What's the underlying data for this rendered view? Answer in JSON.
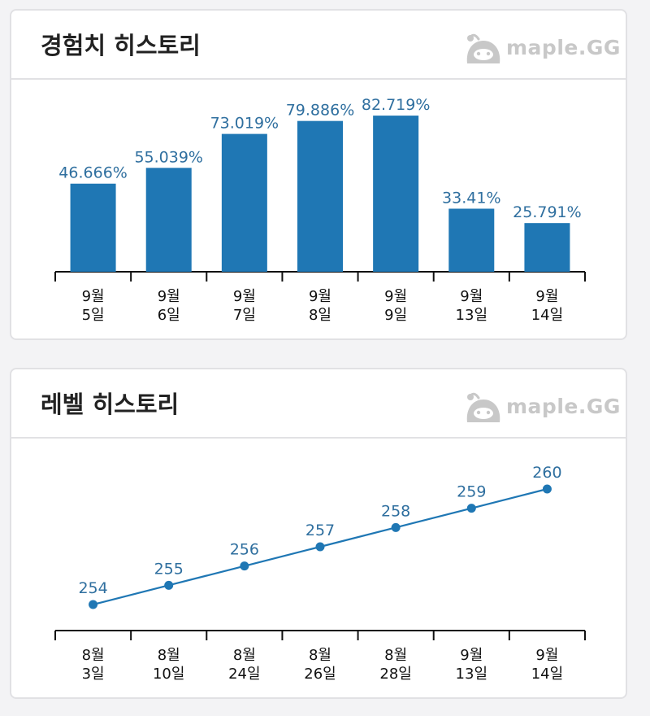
{
  "brand": {
    "text": "maple.GG",
    "icon": "slime-mascot-icon"
  },
  "exp_card": {
    "title": "경험치 히스토리"
  },
  "level_card": {
    "title": "레벨 히스토리"
  },
  "chart_data": [
    {
      "type": "bar",
      "title": "경험치 히스토리",
      "categories": [
        [
          "9월",
          "5일"
        ],
        [
          "9월",
          "6일"
        ],
        [
          "9월",
          "7일"
        ],
        [
          "9월",
          "8일"
        ],
        [
          "9월",
          "9일"
        ],
        [
          "9월",
          "13일"
        ],
        [
          "9월",
          "14일"
        ]
      ],
      "values": [
        46.666,
        55.039,
        73.019,
        79.886,
        82.719,
        33.41,
        25.791
      ],
      "labels": [
        "46.666%",
        "55.039%",
        "73.019%",
        "79.886%",
        "82.719%",
        "33.41%",
        "25.791%"
      ],
      "ylim": [
        0,
        100
      ],
      "color": "#1f77b4"
    },
    {
      "type": "line",
      "title": "레벨 히스토리",
      "categories": [
        [
          "8월",
          "3일"
        ],
        [
          "8월",
          "10일"
        ],
        [
          "8월",
          "24일"
        ],
        [
          "8월",
          "26일"
        ],
        [
          "8월",
          "28일"
        ],
        [
          "9월",
          "13일"
        ],
        [
          "9월",
          "14일"
        ]
      ],
      "values": [
        254,
        255,
        256,
        257,
        258,
        259,
        260
      ],
      "labels": [
        "254",
        "255",
        "256",
        "257",
        "258",
        "259",
        "260"
      ],
      "color": "#1f77b4"
    }
  ]
}
